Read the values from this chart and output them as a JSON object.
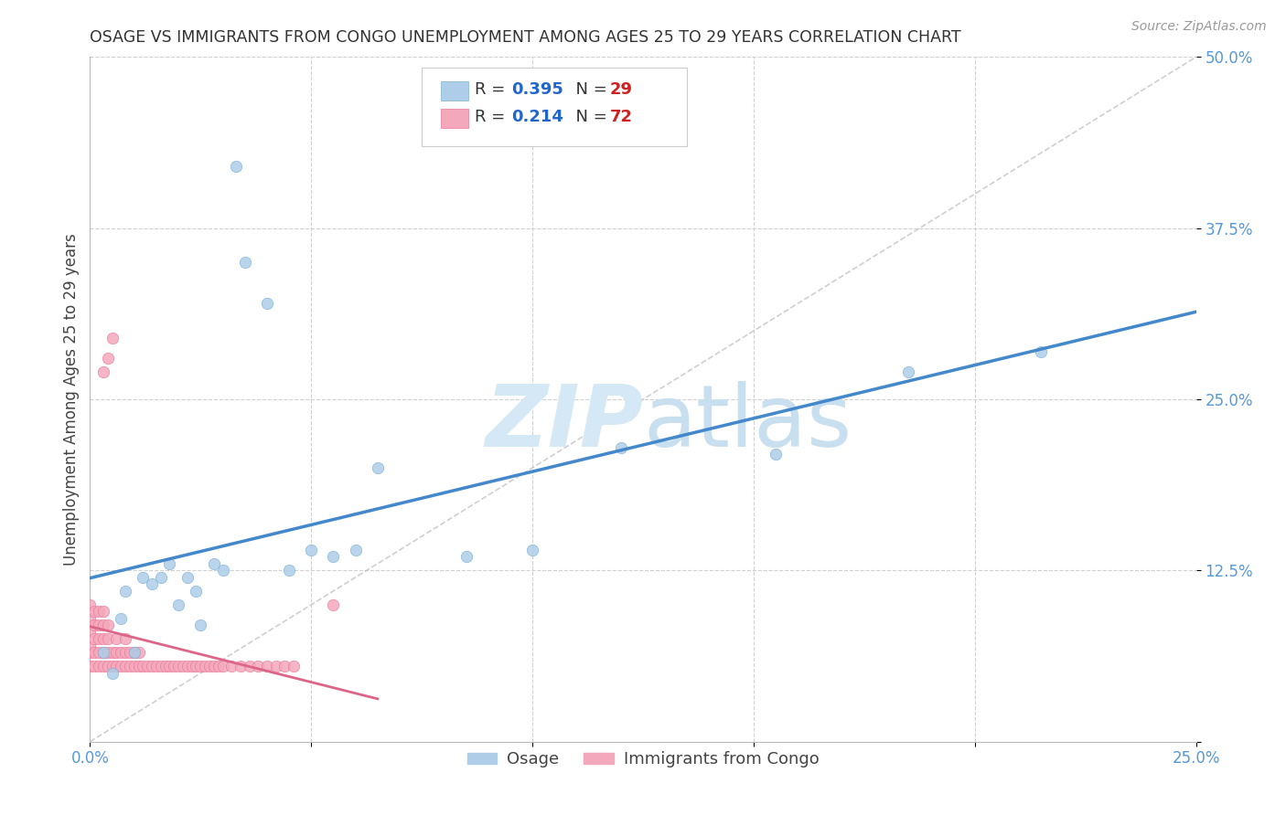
{
  "title": "OSAGE VS IMMIGRANTS FROM CONGO UNEMPLOYMENT AMONG AGES 25 TO 29 YEARS CORRELATION CHART",
  "source": "Source: ZipAtlas.com",
  "ylabel": "Unemployment Among Ages 25 to 29 years",
  "xlim": [
    0.0,
    0.25
  ],
  "ylim": [
    0.0,
    0.5
  ],
  "xticks": [
    0.0,
    0.05,
    0.1,
    0.15,
    0.2,
    0.25
  ],
  "xticklabels": [
    "0.0%",
    "",
    "",
    "",
    "",
    "25.0%"
  ],
  "yticks": [
    0.0,
    0.125,
    0.25,
    0.375,
    0.5
  ],
  "yticklabels": [
    "",
    "12.5%",
    "25.0%",
    "37.5%",
    "50.0%"
  ],
  "osage_color": "#aecde8",
  "congo_color": "#f4a8bc",
  "osage_edge_color": "#7ab0d8",
  "congo_edge_color": "#e87898",
  "blue_line_color": "#4488cc",
  "pink_line_color": "#dd6688",
  "diagonal_color": "#bbbbbb",
  "R_osage": 0.395,
  "N_osage": 29,
  "R_congo": 0.214,
  "N_congo": 72,
  "osage_x": [
    0.003,
    0.005,
    0.007,
    0.008,
    0.01,
    0.012,
    0.014,
    0.016,
    0.018,
    0.02,
    0.022,
    0.024,
    0.025,
    0.028,
    0.03,
    0.033,
    0.035,
    0.04,
    0.045,
    0.05,
    0.055,
    0.06,
    0.065,
    0.085,
    0.1,
    0.12,
    0.155,
    0.185,
    0.215
  ],
  "osage_y": [
    0.065,
    0.05,
    0.09,
    0.11,
    0.065,
    0.12,
    0.115,
    0.12,
    0.13,
    0.1,
    0.12,
    0.11,
    0.085,
    0.13,
    0.125,
    0.42,
    0.35,
    0.32,
    0.125,
    0.14,
    0.135,
    0.14,
    0.2,
    0.135,
    0.14,
    0.215,
    0.21,
    0.27,
    0.285
  ],
  "congo_x": [
    0.0,
    0.0,
    0.0,
    0.0,
    0.0,
    0.0,
    0.001,
    0.001,
    0.001,
    0.001,
    0.001,
    0.002,
    0.002,
    0.002,
    0.002,
    0.002,
    0.003,
    0.003,
    0.003,
    0.003,
    0.003,
    0.003,
    0.004,
    0.004,
    0.004,
    0.004,
    0.004,
    0.005,
    0.005,
    0.005,
    0.006,
    0.006,
    0.006,
    0.007,
    0.007,
    0.008,
    0.008,
    0.008,
    0.009,
    0.009,
    0.01,
    0.01,
    0.011,
    0.011,
    0.012,
    0.013,
    0.014,
    0.015,
    0.016,
    0.017,
    0.018,
    0.019,
    0.02,
    0.021,
    0.022,
    0.023,
    0.024,
    0.025,
    0.026,
    0.027,
    0.028,
    0.029,
    0.03,
    0.032,
    0.034,
    0.036,
    0.038,
    0.04,
    0.042,
    0.044,
    0.046,
    0.055
  ],
  "congo_y": [
    0.055,
    0.065,
    0.07,
    0.08,
    0.09,
    0.1,
    0.055,
    0.065,
    0.075,
    0.085,
    0.095,
    0.055,
    0.065,
    0.075,
    0.085,
    0.095,
    0.055,
    0.065,
    0.075,
    0.085,
    0.095,
    0.27,
    0.055,
    0.065,
    0.075,
    0.085,
    0.28,
    0.055,
    0.065,
    0.295,
    0.055,
    0.065,
    0.075,
    0.055,
    0.065,
    0.055,
    0.065,
    0.075,
    0.055,
    0.065,
    0.055,
    0.065,
    0.055,
    0.065,
    0.055,
    0.055,
    0.055,
    0.055,
    0.055,
    0.055,
    0.055,
    0.055,
    0.055,
    0.055,
    0.055,
    0.055,
    0.055,
    0.055,
    0.055,
    0.055,
    0.055,
    0.055,
    0.055,
    0.055,
    0.055,
    0.055,
    0.055,
    0.055,
    0.055,
    0.055,
    0.055,
    0.1
  ],
  "background_color": "#ffffff",
  "grid_color": "#d0d0d0",
  "title_color": "#333333",
  "axis_tick_color": "#5599dd",
  "legend_R_color": "#2266cc",
  "legend_N_color": "#cc2222",
  "marker_size": 80,
  "watermark_zip_color": "#d5e8f5",
  "watermark_atlas_color": "#c8dff0"
}
